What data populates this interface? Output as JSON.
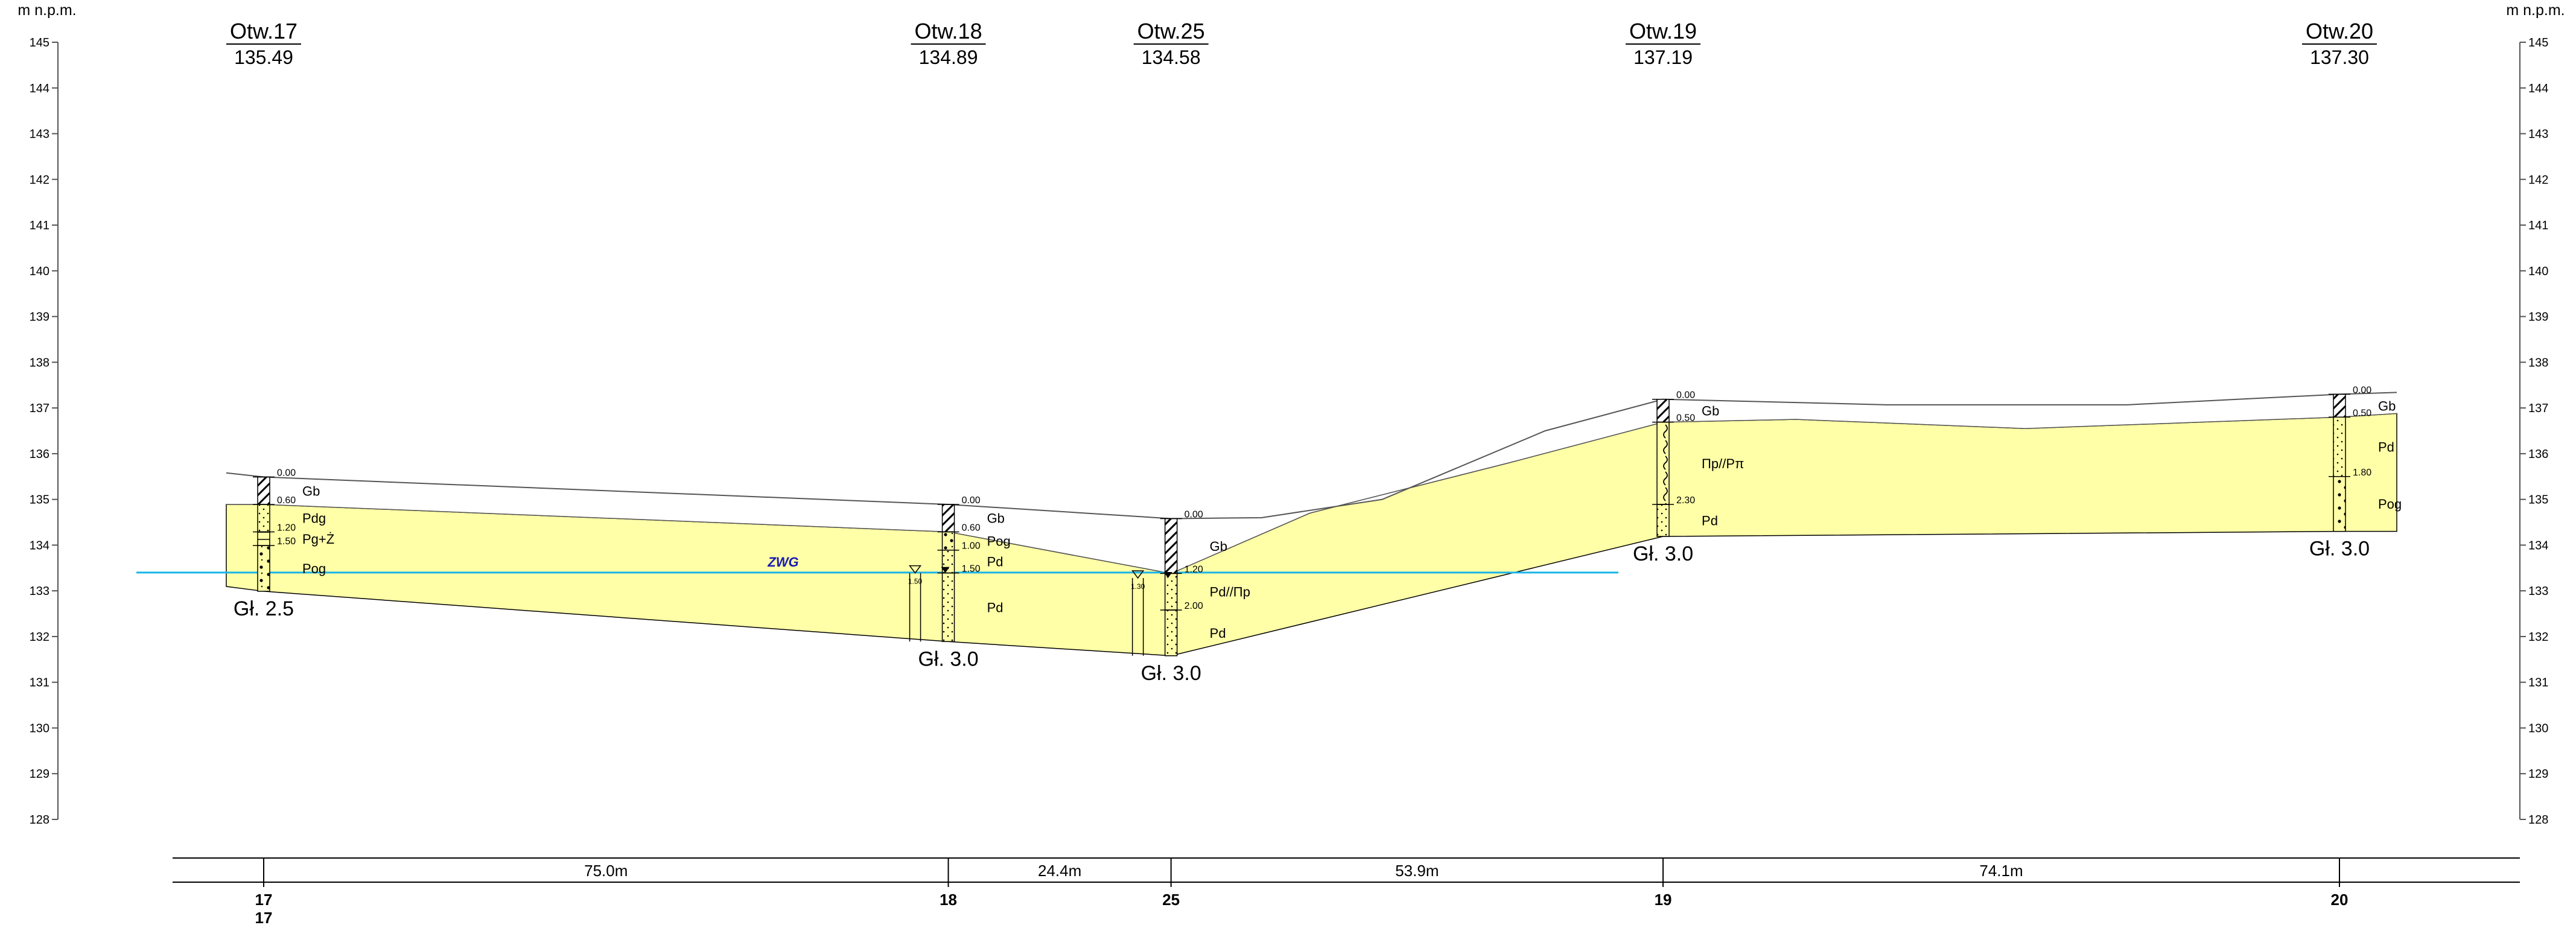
{
  "axis": {
    "unit_label": "m n.p.m.",
    "elevations": [
      145,
      144,
      143,
      142,
      141,
      140,
      139,
      138,
      137,
      136,
      135,
      134,
      133,
      132,
      131,
      130,
      129,
      128
    ],
    "range": [
      128,
      145
    ]
  },
  "boreholes": [
    {
      "id": "17",
      "name": "Otw.17",
      "elev": "135.49",
      "elev_val": 135.49,
      "depth_label": "Gł. 2.5",
      "depth": 2.5,
      "station_label": "17",
      "station_label2": "17",
      "layers": [
        {
          "code": "Gb",
          "top": 0.0,
          "bottom": 0.6,
          "pattern": "hatch",
          "top_label": "0.00"
        },
        {
          "code": "Pdg",
          "top": 0.6,
          "bottom": 1.2,
          "pattern": "dots",
          "top_label": "0.60"
        },
        {
          "code": "Pg+Ż",
          "top": 1.2,
          "bottom": 1.5,
          "pattern": "clay",
          "top_label": "1.20"
        },
        {
          "code": "Pog",
          "top": 1.5,
          "bottom": 2.5,
          "pattern": "gravel",
          "top_label": "1.50"
        }
      ],
      "water": false
    },
    {
      "id": "18",
      "name": "Otw.18",
      "elev": "134.89",
      "elev_val": 134.89,
      "depth_label": "Gł. 3.0",
      "depth": 3.0,
      "station_label": "18",
      "layers": [
        {
          "code": "Gb",
          "top": 0.0,
          "bottom": 0.6,
          "pattern": "hatch",
          "top_label": "0.00"
        },
        {
          "code": "Pog",
          "top": 0.6,
          "bottom": 1.0,
          "pattern": "gravel",
          "top_label": "0.60"
        },
        {
          "code": "Pd",
          "top": 1.0,
          "bottom": 1.5,
          "pattern": "dots",
          "top_label": "1.00"
        },
        {
          "code": "Pd",
          "top": 1.5,
          "bottom": 3.0,
          "pattern": "dots",
          "top_label": "1.50"
        }
      ],
      "water": true,
      "water_label": "1.50"
    },
    {
      "id": "25",
      "name": "Otw.25",
      "elev": "134.58",
      "elev_val": 134.58,
      "depth_label": "Gł. 3.0",
      "depth": 3.0,
      "station_label": "25",
      "layers": [
        {
          "code": "Gb",
          "top": 0.0,
          "bottom": 1.2,
          "pattern": "hatch",
          "top_label": "0.00"
        },
        {
          "code": "Pd//Πp",
          "top": 1.2,
          "bottom": 2.0,
          "pattern": "dots",
          "top_label": "1.20"
        },
        {
          "code": "Pd",
          "top": 2.0,
          "bottom": 3.0,
          "pattern": "dots",
          "top_label": "2.00"
        }
      ],
      "water": true,
      "water_label": "1.30"
    },
    {
      "id": "19",
      "name": "Otw.19",
      "elev": "137.19",
      "elev_val": 137.19,
      "depth_label": "Gł. 3.0",
      "depth": 3.0,
      "station_label": "19",
      "layers": [
        {
          "code": "Gb",
          "top": 0.0,
          "bottom": 0.5,
          "pattern": "hatch",
          "top_label": "0.00"
        },
        {
          "code": "Πp//Pπ",
          "top": 0.5,
          "bottom": 2.3,
          "pattern": "wavy",
          "top_label": "0.50"
        },
        {
          "code": "Pd",
          "top": 2.3,
          "bottom": 3.0,
          "pattern": "dots",
          "top_label": "2.30"
        }
      ],
      "water": false
    },
    {
      "id": "20",
      "name": "Otw.20",
      "elev": "137.30",
      "elev_val": 137.3,
      "depth_label": "Gł. 3.0",
      "depth": 3.0,
      "station_label": "20",
      "layers": [
        {
          "code": "Gb",
          "top": 0.0,
          "bottom": 0.5,
          "pattern": "hatch",
          "top_label": "0.00"
        },
        {
          "code": "Pd",
          "top": 0.5,
          "bottom": 1.8,
          "pattern": "dots",
          "top_label": "0.50"
        },
        {
          "code": "Pog",
          "top": 1.8,
          "bottom": 3.0,
          "pattern": "gravel",
          "top_label": "1.80"
        }
      ],
      "water": false
    }
  ],
  "distances": [
    "75.0m",
    "24.4m",
    "53.9m",
    "74.1m"
  ],
  "distance_values": [
    75.0,
    24.4,
    53.9,
    74.1
  ],
  "groundwater": {
    "label": "ZWG",
    "elevation": 133.4
  },
  "colors": {
    "fill": "#ffffa8",
    "water": "#19b4e8",
    "zwg": "#1a1ab4",
    "line": "#000000",
    "terrain": "#555555"
  }
}
